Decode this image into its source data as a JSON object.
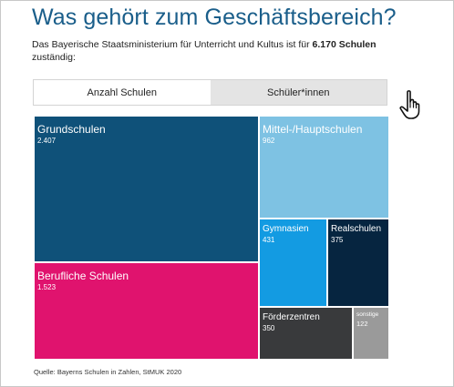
{
  "header": {
    "title": "Was gehört zum Geschäftsbereich?",
    "subtitle_before": "Das Bayerische Staatsministerium für Unterricht und Kultus ist für ",
    "subtitle_bold": "6.170 Schulen",
    "subtitle_after": " zuständig:"
  },
  "tabs": [
    {
      "label": "Anzahl Schulen",
      "active": true
    },
    {
      "label": "Schüler*innen",
      "active": false
    }
  ],
  "icons": {
    "pointer": "hand-pointer-icon"
  },
  "chart_data": {
    "type": "treemap",
    "title": "",
    "unit": "Schulen",
    "items": [
      {
        "name": "Grundschulen",
        "value": 2407,
        "label": "2.407",
        "color": "#0f5179"
      },
      {
        "name": "Berufliche Schulen",
        "value": 1523,
        "label": "1.523",
        "color": "#e0136e"
      },
      {
        "name": "Mittel-/Hauptschulen",
        "value": 962,
        "label": "962",
        "color": "#7ec2e3"
      },
      {
        "name": "Gymnasien",
        "value": 431,
        "label": "431",
        "color": "#139be2"
      },
      {
        "name": "Realschulen",
        "value": 375,
        "label": "375",
        "color": "#062540"
      },
      {
        "name": "Förderzentren",
        "value": 350,
        "label": "350",
        "color": "#393a3c"
      },
      {
        "name": "sonstige",
        "value": 122,
        "label": "122",
        "color": "#9a9a9a"
      }
    ]
  },
  "source": "Quelle: Bayerns Schulen in Zahlen, StMUK 2020"
}
